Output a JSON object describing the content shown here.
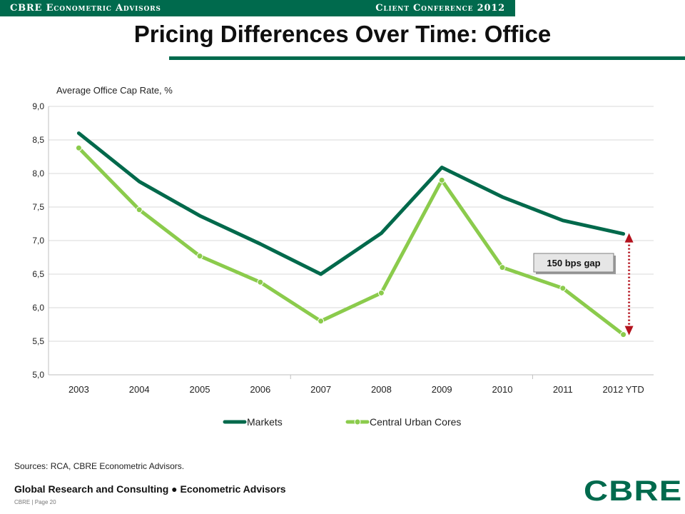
{
  "header": {
    "left": "CBRE Econometric Advisors",
    "right": "Client Conference 2012"
  },
  "title": "Pricing Differences Over Time: Office",
  "chart_data": {
    "type": "line",
    "title": "",
    "ylabel": "Average Office Cap Rate, %",
    "xlabel": "",
    "categories": [
      "2003",
      "2004",
      "2005",
      "2006",
      "2007",
      "2008",
      "2009",
      "2010",
      "2011",
      "2012 YTD"
    ],
    "ylim": [
      5.0,
      9.0
    ],
    "yticks": [
      "5,0",
      "5,5",
      "6,0",
      "6,5",
      "7,0",
      "7,5",
      "8,0",
      "8,5",
      "9,0"
    ],
    "grid": true,
    "legend_position": "bottom",
    "series": [
      {
        "name": "Markets",
        "values": [
          8.6,
          7.88,
          7.37,
          6.95,
          6.5,
          7.11,
          8.09,
          7.65,
          7.3,
          7.1
        ],
        "color": "#00694b",
        "markers": false
      },
      {
        "name": "Central Urban Cores",
        "values": [
          8.38,
          7.46,
          6.77,
          6.38,
          5.8,
          6.22,
          7.9,
          6.6,
          6.29,
          5.6
        ],
        "color": "#8bcb4c",
        "markers": true
      }
    ],
    "annotation": {
      "text": "150 bps gap",
      "category": "2012 YTD",
      "from": 7.1,
      "to": 5.6,
      "color": "#b3121d"
    }
  },
  "sources": "Sources: RCA, CBRE Econometric Advisors.",
  "footer": {
    "text": "Global Research and Consulting ● Econometric Advisors",
    "page": "CBRE | Page 20",
    "logo": "CBRE"
  }
}
